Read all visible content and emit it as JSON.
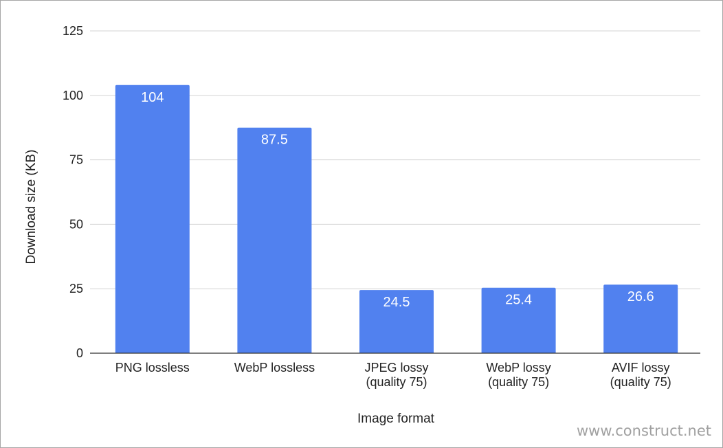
{
  "chart_data": {
    "type": "bar",
    "title": "",
    "xlabel": "Image format",
    "ylabel": "Download size (KB)",
    "ylim": [
      0,
      125
    ],
    "yticks": [
      0,
      25,
      50,
      75,
      100,
      125
    ],
    "grid": true,
    "legend": "none",
    "categories": [
      [
        "PNG lossless"
      ],
      [
        "WebP lossless"
      ],
      [
        "JPEG lossy",
        "(quality 75)"
      ],
      [
        "WebP lossy",
        "(quality 75)"
      ],
      [
        "AVIF lossy",
        "(quality 75)"
      ]
    ],
    "series": [
      {
        "values": [
          104,
          87.5,
          24.5,
          25.4,
          26.6
        ],
        "labels": [
          "104",
          "87.5",
          "24.5",
          "25.4",
          "26.6"
        ]
      }
    ],
    "colors": {
      "bar": "#5181ef",
      "grid": "#d3d3d3",
      "axis": "#333333"
    }
  },
  "watermark": "www.construct.net"
}
